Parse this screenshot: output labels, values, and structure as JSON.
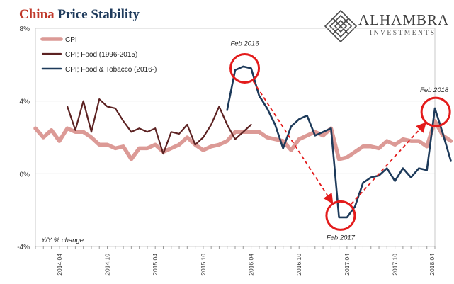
{
  "header": {
    "title_part1": "China",
    "title_part2": "Price Stability"
  },
  "logo": {
    "brand": "ALHAMBRA",
    "sub": "INVESTMENTS"
  },
  "chart_data": {
    "type": "line",
    "title": "China Price Stability",
    "ylabel_note": "Y/Y % change",
    "ylim": [
      -4,
      8
    ],
    "yticks": [
      {
        "value": 8,
        "label": "8%"
      },
      {
        "value": 4,
        "label": "4%"
      },
      {
        "value": 0,
        "label": "0%"
      },
      {
        "value": -4,
        "label": "-4%"
      }
    ],
    "xlim": [
      0,
      50
    ],
    "xticks": [
      {
        "index": 3,
        "label": "2014.04"
      },
      {
        "index": 9,
        "label": "2014.10"
      },
      {
        "index": 15,
        "label": "2015.04"
      },
      {
        "index": 21,
        "label": "2015.10"
      },
      {
        "index": 27,
        "label": "2016.04"
      },
      {
        "index": 33,
        "label": "2016.10"
      },
      {
        "index": 39,
        "label": "2017.04"
      },
      {
        "index": 45,
        "label": "2017.10"
      },
      {
        "index": 51,
        "label": "2018.04"
      }
    ],
    "legend_position": "top-left",
    "series": [
      {
        "name": "CPI",
        "color": "#dc9a96",
        "width": 5.5,
        "x_start": 0,
        "values": [
          2.5,
          2.0,
          2.4,
          1.8,
          2.5,
          2.3,
          2.3,
          2.0,
          1.6,
          1.6,
          1.4,
          1.5,
          0.8,
          1.4,
          1.4,
          1.6,
          1.2,
          1.4,
          1.6,
          2.0,
          1.6,
          1.3,
          1.5,
          1.6,
          1.8,
          2.3,
          2.3,
          2.3,
          2.3,
          2.0,
          1.9,
          1.8,
          1.3,
          1.9,
          2.1,
          2.3,
          2.1,
          2.5,
          0.8,
          0.9,
          1.2,
          1.5,
          1.5,
          1.4,
          1.8,
          1.6,
          1.9,
          1.8,
          1.8,
          1.5,
          2.9,
          2.1,
          1.8
        ]
      },
      {
        "name": "CPI; Food (1996-2015)",
        "color": "#5c2222",
        "width": 2.2,
        "x_start": 4,
        "values": [
          3.7,
          2.4,
          4.0,
          2.3,
          4.1,
          3.7,
          3.6,
          2.9,
          2.3,
          2.5,
          2.3,
          2.5,
          1.1,
          2.3,
          2.2,
          2.7,
          1.6,
          2.0,
          2.7,
          3.7,
          2.7,
          1.9,
          2.3,
          2.7
        ]
      },
      {
        "name": "CPI; Food & Tobacco (2016-)",
        "color": "#1d3a5a",
        "width": 2.6,
        "x_start": 24,
        "values": [
          3.5,
          5.7,
          5.9,
          5.8,
          4.3,
          3.6,
          2.7,
          1.4,
          2.6,
          3.0,
          3.2,
          2.1,
          2.3,
          2.5,
          -2.4,
          -2.4,
          -1.8,
          -0.5,
          -0.2,
          -0.1,
          0.3,
          -0.4,
          0.3,
          -0.2,
          0.3,
          0.2,
          3.6,
          2.2,
          0.7
        ]
      }
    ],
    "annotations": [
      {
        "label": "Feb 2016",
        "x": 26.2,
        "y": 5.8
      },
      {
        "label": "Feb 2017",
        "x": 38.2,
        "y": -2.3
      },
      {
        "label": "Feb 2018",
        "x": 50.1,
        "y": 3.4
      }
    ]
  }
}
